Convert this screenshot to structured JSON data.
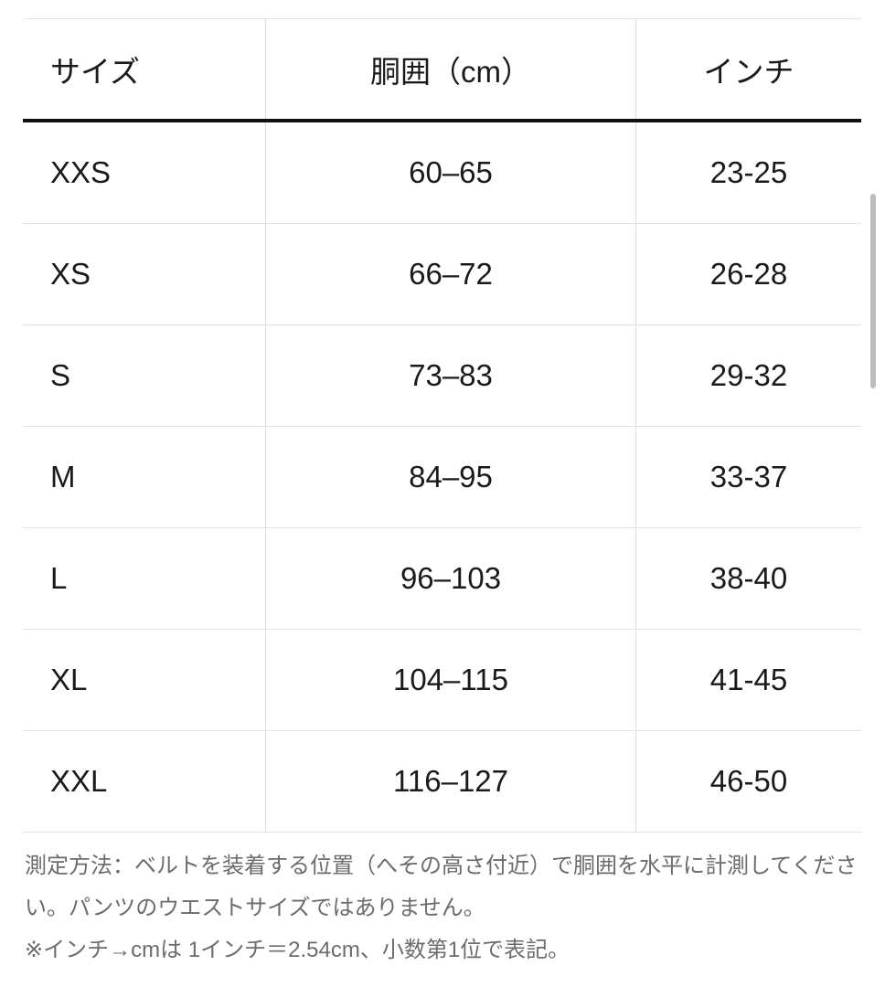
{
  "table": {
    "headers": [
      "サイズ",
      "胴囲（cm）",
      "インチ"
    ],
    "rows": [
      [
        "XXS",
        "60–65",
        "23-25"
      ],
      [
        "XS",
        "66–72",
        "26-28"
      ],
      [
        "S",
        "73–83",
        "29-32"
      ],
      [
        "M",
        "84–95",
        "33-37"
      ],
      [
        "L",
        "96–103",
        "38-40"
      ],
      [
        "XL",
        "104–115",
        "41-45"
      ],
      [
        "XXL",
        "116–127",
        "46-50"
      ]
    ]
  },
  "notes": {
    "line1": "測定方法：ベルトを装着する位置（へその高さ付近）で胴囲を水平に計測してください。パンツのウエストサイズではありません。",
    "line2": "※インチ→cmは 1インチ＝2.54cm、小数第1位で表記。"
  }
}
